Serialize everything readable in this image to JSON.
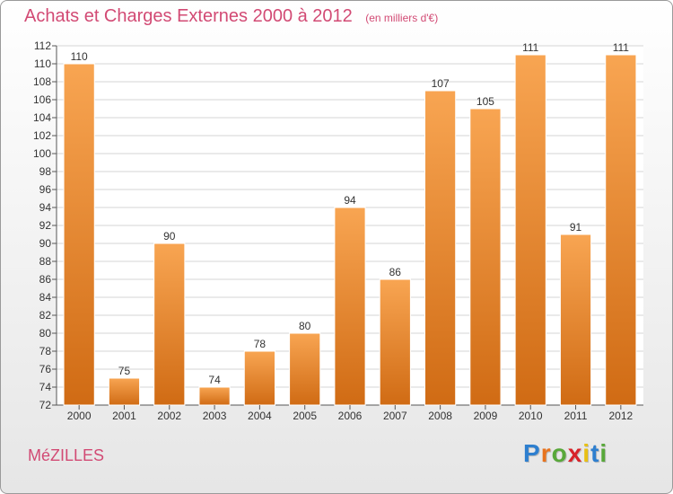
{
  "header": {
    "title": "Achats et Charges Externes 2000 à 2012",
    "subtitle": "(en milliers d'€)"
  },
  "footer": {
    "commune": "MéZILLES",
    "brand": {
      "letters": [
        "P",
        "r",
        "o",
        "x",
        "i",
        "t",
        "i"
      ],
      "colors": [
        "#2e7fcf",
        "#e8731d",
        "#58a83a",
        "#d8232a",
        "#e8c014",
        "#2e7fcf",
        "#58a83a"
      ]
    }
  },
  "colors": {
    "bar_top": "#f8a552",
    "bar_bottom": "#d06b14",
    "bar_edge": "#ffffff",
    "title_pink": "#d24a74",
    "grid": "#d5d5d5"
  },
  "chart_data": {
    "type": "bar",
    "categories": [
      "2000",
      "2001",
      "2002",
      "2003",
      "2004",
      "2005",
      "2006",
      "2007",
      "2008",
      "2009",
      "2010",
      "2011",
      "2012"
    ],
    "values": [
      110,
      75,
      90,
      74,
      78,
      80,
      94,
      86,
      107,
      105,
      111,
      91,
      111
    ],
    "ylim": [
      72,
      112
    ],
    "yticks": [
      72,
      74,
      76,
      78,
      80,
      82,
      84,
      86,
      88,
      90,
      92,
      94,
      96,
      98,
      100,
      102,
      104,
      106,
      108,
      110,
      112
    ],
    "data_labels": true,
    "grid": true
  }
}
